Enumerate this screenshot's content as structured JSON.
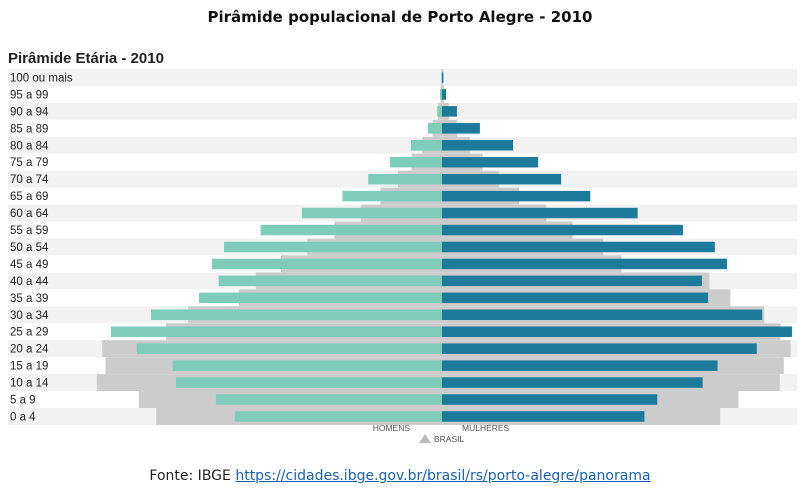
{
  "title": "Pirâmide populacional de Porto Alegre - 2010",
  "source": {
    "prefix": "Fonte: IBGE",
    "link_text": "https://cidades.ibge.gov.br/brasil/rs/porto-alegre/panorama"
  },
  "colors": {
    "men": "#7ecdb8",
    "women": "#1d7a9b",
    "brazil": "#cccccc",
    "row_stripe": "#f2f2f2",
    "brazil_marker": "#bbbbbb"
  },
  "chart_data": {
    "type": "bar",
    "orientation": "horizontal-pyramid",
    "title": "Pirâmide Etária - 2010",
    "categories": [
      "100 ou mais",
      "95 a 99",
      "90 a 94",
      "85 a 89",
      "80 a 84",
      "75 a 79",
      "70 a 74",
      "65 a 69",
      "60 a 64",
      "55 a 59",
      "50 a 54",
      "45 a 49",
      "40 a 44",
      "35 a 39",
      "30 a 34",
      "25 a 29",
      "20 a 24",
      "15 a 19",
      "10 a 14",
      "5 a 9",
      "0 a 4"
    ],
    "xlim": [
      -5.2,
      5.2
    ],
    "x_unit": "% of population",
    "legend_labels": {
      "men": "HOMENS",
      "women": "MULHERES",
      "brazil": "BRASIL"
    },
    "series": [
      {
        "name": "HOMENS",
        "side": "left",
        "values": [
          0.01,
          0.03,
          0.07,
          0.21,
          0.46,
          0.77,
          1.09,
          1.47,
          2.07,
          2.68,
          3.22,
          3.4,
          3.3,
          3.59,
          4.3,
          4.89,
          4.51,
          3.98,
          3.93,
          3.34,
          3.06
        ]
      },
      {
        "name": "MULHERES",
        "side": "right",
        "values": [
          0.02,
          0.06,
          0.22,
          0.56,
          1.05,
          1.42,
          1.76,
          2.19,
          2.89,
          3.56,
          4.03,
          4.21,
          3.84,
          3.93,
          4.73,
          5.17,
          4.65,
          4.07,
          3.85,
          3.18,
          2.99
        ]
      },
      {
        "name": "BRASIL",
        "side": "both",
        "values_men": [
          0.01,
          0.02,
          0.06,
          0.14,
          0.29,
          0.45,
          0.65,
          0.91,
          1.2,
          1.59,
          1.99,
          2.38,
          2.75,
          3.0,
          3.75,
          4.08,
          5.02,
          4.97,
          5.1,
          4.48,
          4.22
        ],
        "values_women": [
          0.02,
          0.03,
          0.1,
          0.22,
          0.41,
          0.6,
          0.84,
          1.14,
          1.54,
          1.93,
          2.38,
          2.65,
          3.95,
          4.26,
          4.76,
          5.0,
          5.15,
          5.05,
          4.99,
          4.38,
          4.11
        ]
      }
    ]
  }
}
